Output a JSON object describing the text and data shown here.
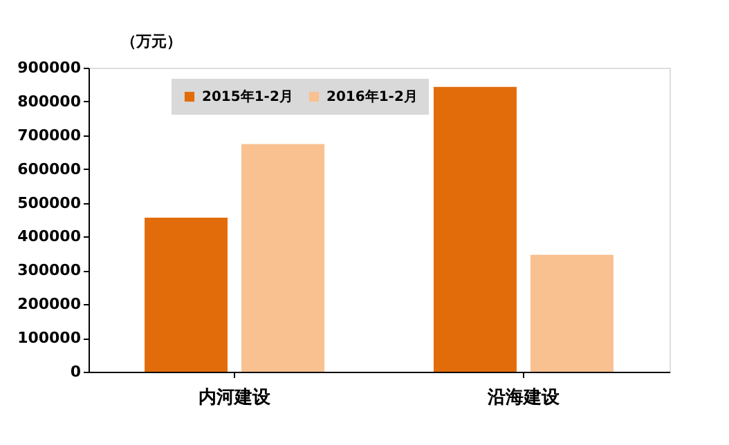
{
  "chart_data": {
    "type": "bar",
    "ylabel": "（万元）",
    "categories": [
      "内河建设",
      "沿海建设"
    ],
    "series": [
      {
        "name": "2015年1-2月",
        "color": "#e36c0a",
        "values": [
          456000,
          843000
        ]
      },
      {
        "name": "2016年1-2月",
        "color": "#f9c090",
        "values": [
          674000,
          346000
        ]
      }
    ],
    "ylim": [
      0,
      900000
    ],
    "yticks": [
      0,
      100000,
      200000,
      300000,
      400000,
      500000,
      600000,
      700000,
      800000,
      900000
    ],
    "grid": false,
    "legend": "top"
  }
}
